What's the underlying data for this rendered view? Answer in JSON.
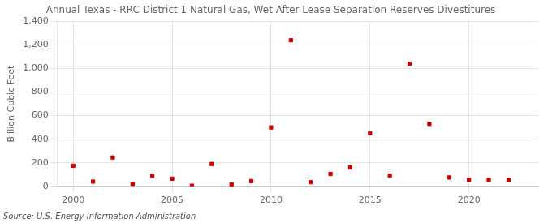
{
  "chart_data": {
    "type": "scatter",
    "title": "Annual Texas - RRC District 1 Natural Gas, Wet After Lease Separation Reserves Divestitures",
    "ylabel": "Billion Cubic Feet",
    "source": "Source: U.S. Energy Information Administration",
    "x": [
      2000,
      2001,
      2002,
      2003,
      2004,
      2005,
      2006,
      2007,
      2008,
      2009,
      2010,
      2011,
      2012,
      2013,
      2014,
      2015,
      2016,
      2017,
      2018,
      2019,
      2020,
      2021,
      2022
    ],
    "values": [
      175,
      40,
      245,
      20,
      90,
      65,
      5,
      190,
      15,
      45,
      500,
      1240,
      35,
      105,
      160,
      450,
      90,
      1040,
      530,
      75,
      55,
      55,
      55
    ],
    "color": "#cc0000",
    "marker": "square",
    "xlim": [
      1999.2,
      2023.5
    ],
    "xticks": [
      2000,
      2005,
      2010,
      2015,
      2020
    ],
    "ylim": [
      0,
      1400
    ],
    "yticks": [
      0,
      200,
      400,
      600,
      800,
      {
        "value": 1000,
        "label": "1,000"
      },
      {
        "value": 1200,
        "label": "1,200"
      },
      {
        "value": 1400,
        "label": "1,400"
      }
    ],
    "grid": true
  }
}
